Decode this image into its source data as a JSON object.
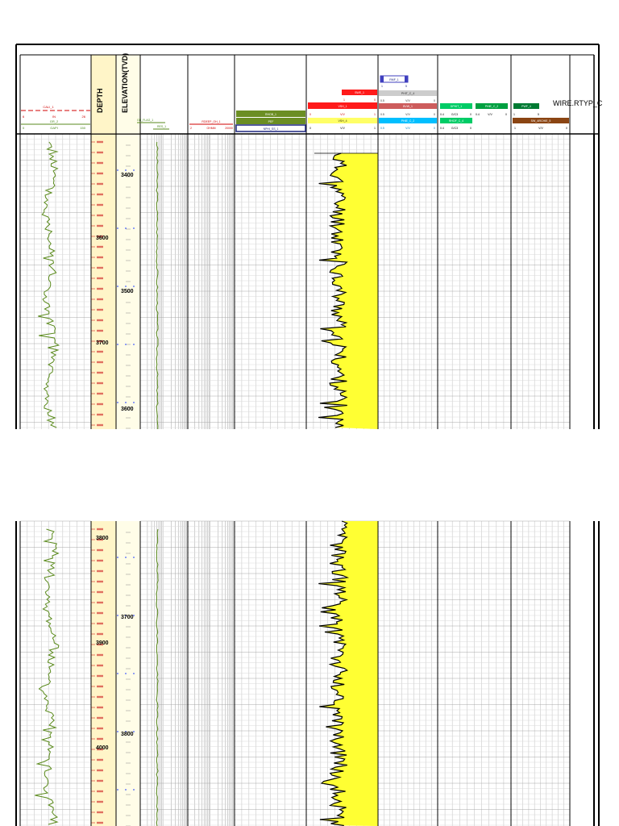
{
  "header": {
    "depth_title": "DEPTH",
    "elevation_title": "ELEVATION(TVD)",
    "wire_label": "WIRE.RTYP_C",
    "curves": {
      "cali": {
        "name": "CALI_1",
        "unit": "IN",
        "min": "6",
        "max": "26"
      },
      "gr": {
        "name": "GR_2",
        "unit": "GAPI",
        "min": "0",
        "max": "150"
      },
      "gr_flag": {
        "name": "GR_FLAG_1"
      },
      "res": {
        "name": "RES_1"
      },
      "rdeep": {
        "name": "RDEEP_OH_1",
        "unit": "OHMM",
        "min": "2",
        "max": "20000"
      },
      "rhob": {
        "name": "RHOB_1"
      },
      "pef": {
        "name": "PEF"
      },
      "nphi": {
        "name": "NPHI_SS_1"
      },
      "vsh_top": {
        "name": "SWE_1",
        "min": "1",
        "max": "0"
      },
      "vsh_mid": {
        "name": "VSH_1",
        "min": "0",
        "max": "1"
      },
      "vsh_unit": "V/V",
      "vsh": {
        "name": "VSH_4",
        "unit": "V/V",
        "min": "0",
        "max": "1"
      },
      "rmf": {
        "name": "RMF_1",
        "min": "1",
        "max": "5"
      },
      "phit_c": {
        "name": "PHIT_C_4",
        "unit": "V/V",
        "min": "0.5",
        "max": "0"
      },
      "bvw": {
        "name": "BVW_1",
        "unit": "V/V",
        "min": "0.5",
        "max": "0"
      },
      "phie": {
        "name": "PHIE_C_2",
        "unit": "V/V",
        "min": "0.5",
        "max": "0"
      },
      "dphit": {
        "name": "DPHIT_1",
        "unit": "G/C3",
        "min": "0.4",
        "max": "0"
      },
      "phie2": {
        "name": "PHIE_C_2",
        "unit": "V/V",
        "min": "0.4",
        "max": "0"
      },
      "rhof": {
        "name": "RHOF_C_4",
        "unit": "G/C3",
        "min": "0.4",
        "max": "0"
      },
      "pwf": {
        "name": "PWF_4",
        "min": "1",
        "max": "5"
      },
      "sw_ar": {
        "name": "SW_ARCHIE_5",
        "unit": "V/V",
        "min": "1",
        "max": "0"
      }
    }
  },
  "depth_track": {
    "top_panel": {
      "major_labels": [
        "3600",
        "3700"
      ]
    },
    "bottom_panel": {
      "major_labels": [
        "3800",
        "3900",
        "4000"
      ]
    }
  },
  "elevation_track": {
    "top_panel": {
      "major_labels": [
        "3400",
        "3500",
        "3600"
      ]
    },
    "bottom_panel": {
      "major_labels": [
        "3700",
        "3800"
      ]
    }
  }
}
